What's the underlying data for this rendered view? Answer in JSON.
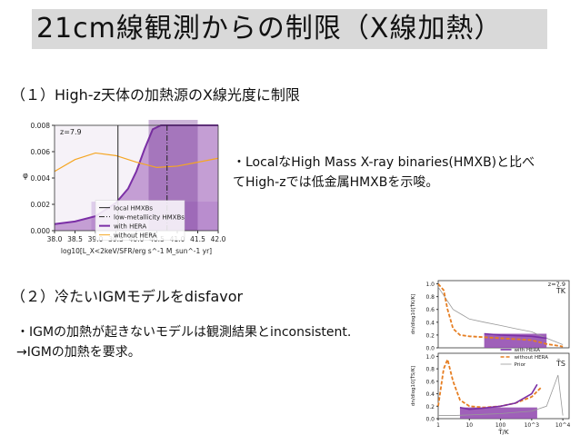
{
  "slide": {
    "title": "21cm線観測からの制限（X線加熱）",
    "section1": "（１）High-z天体の加熱源のX線光度に制限",
    "note1_line1": "・LocalなHigh Mass X-ray binaries(HMXB)と比べ",
    "note1_line2": "てHigh-zでは低金属HMXBを示唆。",
    "section2": "（２）冷たいIGMモデルをdisfavor",
    "note2_line1": "・IGMの加熱が起きないモデルは観測結果とinconsistent.",
    "note2_line2": "→IGMの加熱を要求。"
  },
  "colors": {
    "title_bg": "#d9d9d9",
    "purple": "#7b2fa6",
    "purple_fill": "#8e44ad",
    "orange": "#f5a623",
    "dark_orange": "#e67e22"
  },
  "chart_data": [
    {
      "type": "area",
      "annotation": "z=7.9",
      "xlabel": "log10[L_X<2keV/SFR/erg s^-1 M_sun^-1 yr]",
      "ylabel": "φ",
      "xlim": [
        38.0,
        42.0
      ],
      "ylim": [
        0.0,
        0.008
      ],
      "xticks": [
        "38.0",
        "38.5",
        "39.0",
        "39.5",
        "40.0",
        "40.5",
        "41.0",
        "41.5",
        "42.0"
      ],
      "yticks": [
        "0.000",
        "0.002",
        "0.004",
        "0.006",
        "0.008"
      ],
      "vlines": [
        {
          "name": "local HMXBs",
          "x": 39.55,
          "style": "solid"
        },
        {
          "name": "low-metallicity HMXBs",
          "x": 40.75,
          "style": "dashdot"
        }
      ],
      "legend": [
        "local HMXBs",
        "low-metallicity HMXBs",
        "with HERA",
        "without HERA"
      ],
      "legend_placement": "bottom-right",
      "series": [
        {
          "name": "with HERA",
          "x": [
            38.0,
            38.5,
            39.0,
            39.5,
            39.8,
            40.0,
            40.2,
            40.4,
            40.6,
            40.8,
            41.0,
            41.2,
            41.5,
            41.8,
            42.0
          ],
          "y": [
            0.0005,
            0.0007,
            0.0011,
            0.0021,
            0.0032,
            0.0045,
            0.0062,
            0.0077,
            0.0086,
            0.0087,
            0.0088,
            0.0087,
            0.0086,
            0.0084,
            0.0081
          ]
        },
        {
          "name": "without HERA",
          "x": [
            38.0,
            38.5,
            39.0,
            39.5,
            40.0,
            40.5,
            41.0,
            41.5,
            42.0
          ],
          "y": [
            0.0045,
            0.0054,
            0.0059,
            0.0057,
            0.0052,
            0.0048,
            0.0049,
            0.0052,
            0.0055
          ]
        }
      ]
    },
    {
      "type": "line",
      "annotation": "z=7.9",
      "panels": [
        {
          "label": "T̄K",
          "ylabel": "dn/dlog10[T̄K/K]",
          "ylim": [
            0.0,
            1.0
          ],
          "yticks": [
            "0.0",
            "0.2",
            "0.4",
            "0.6",
            "0.8",
            "1.0"
          ]
        },
        {
          "label": "T̄S",
          "ylabel": "dn/dlog10[T̄S/K]",
          "ylim": [
            0.0,
            1.0
          ],
          "yticks": [
            "0.0",
            "0.2",
            "0.4",
            "0.6",
            "0.8",
            "1.0"
          ]
        }
      ],
      "xlabel": "T̄/K",
      "xscale": "log",
      "xticks": [
        "1",
        "10",
        "100",
        "10^3",
        "10^4"
      ],
      "legend": [
        "with HERA",
        "without HERA",
        "Prior"
      ],
      "legend_placement": "center"
    }
  ]
}
